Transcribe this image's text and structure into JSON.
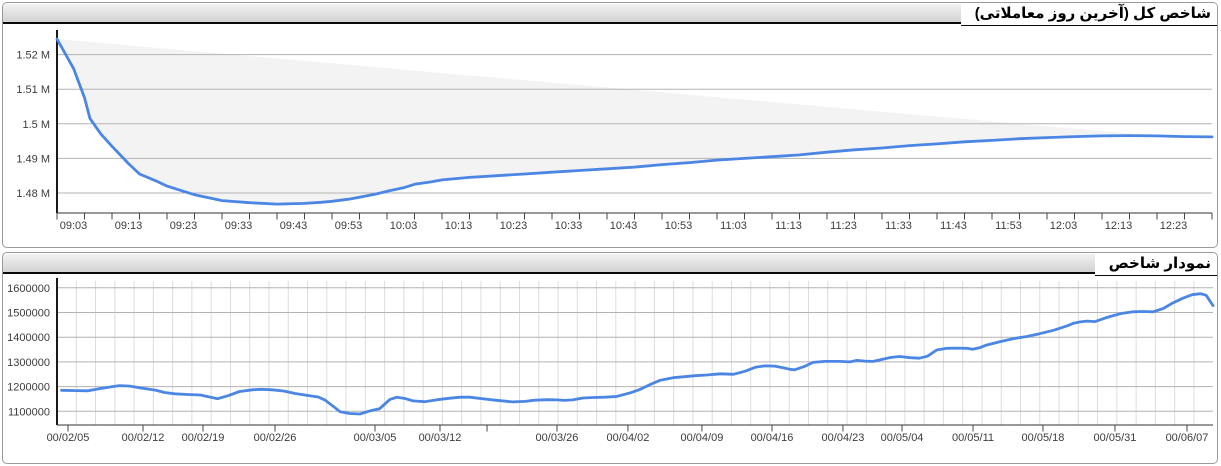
{
  "panels": [
    {
      "title": "شاخص کل (آخرین روز معاملاتی)"
    },
    {
      "title": "نمودار شاخص"
    }
  ],
  "colors": {
    "line": "#4b86e5",
    "envelope_fill": "#f3f3f3",
    "grid_h": "#b3b3b3",
    "grid_v": "#dcdcdc",
    "axis": "#1a1a1a",
    "tick": "#444444",
    "label": "#3c3c3c"
  },
  "chart_data": [
    {
      "type": "line",
      "title": "شاخص کل (آخرین روز معاملاتی)",
      "x_axis": {
        "start_time": "09:00",
        "end_time": "12:30",
        "minor_tick_minutes": 5
      },
      "x_labels": [
        {
          "m": 3,
          "label": "09:03"
        },
        {
          "m": 13,
          "label": "09:13"
        },
        {
          "m": 23,
          "label": "09:23"
        },
        {
          "m": 33,
          "label": "09:33"
        },
        {
          "m": 43,
          "label": "09:43"
        },
        {
          "m": 53,
          "label": "09:53"
        },
        {
          "m": 63,
          "label": "10:03"
        },
        {
          "m": 73,
          "label": "10:13"
        },
        {
          "m": 83,
          "label": "10:23"
        },
        {
          "m": 93,
          "label": "10:33"
        },
        {
          "m": 103,
          "label": "10:43"
        },
        {
          "m": 113,
          "label": "10:53"
        },
        {
          "m": 123,
          "label": "11:03"
        },
        {
          "m": 133,
          "label": "11:13"
        },
        {
          "m": 143,
          "label": "11:23"
        },
        {
          "m": 153,
          "label": "11:33"
        },
        {
          "m": 163,
          "label": "11:43"
        },
        {
          "m": 173,
          "label": "11:53"
        },
        {
          "m": 183,
          "label": "12:03"
        },
        {
          "m": 193,
          "label": "12:13"
        },
        {
          "m": 203,
          "label": "12:23"
        }
      ],
      "y_ticks": [
        {
          "value": 1520000,
          "label": "1.52 M"
        },
        {
          "value": 1510000,
          "label": "1.51 M"
        },
        {
          "value": 1500000,
          "label": "1.5 M"
        },
        {
          "value": 1490000,
          "label": "1.49 M"
        },
        {
          "value": 1480000,
          "label": "1.48 M"
        }
      ],
      "envelope": {
        "from": {
          "m": 0,
          "v": 1524500
        },
        "to": {
          "m": 200,
          "v": 1496500
        }
      },
      "series": [
        {
          "name": "total-index-intraday",
          "points": [
            [
              0,
              1524500
            ],
            [
              3,
              1516000
            ],
            [
              5,
              1507500
            ],
            [
              6,
              1501500
            ],
            [
              8,
              1497000
            ],
            [
              10,
              1493500
            ],
            [
              13,
              1488500
            ],
            [
              15,
              1485500
            ],
            [
              18,
              1483500
            ],
            [
              20,
              1482000
            ],
            [
              23,
              1480500
            ],
            [
              25,
              1479500
            ],
            [
              28,
              1478500
            ],
            [
              30,
              1477800
            ],
            [
              35,
              1477200
            ],
            [
              40,
              1476800
            ],
            [
              45,
              1477000
            ],
            [
              48,
              1477300
            ],
            [
              50,
              1477600
            ],
            [
              53,
              1478200
            ],
            [
              55,
              1478800
            ],
            [
              58,
              1479700
            ],
            [
              60,
              1480500
            ],
            [
              63,
              1481500
            ],
            [
              65,
              1482500
            ],
            [
              68,
              1483200
            ],
            [
              70,
              1483800
            ],
            [
              75,
              1484500
            ],
            [
              80,
              1485000
            ],
            [
              85,
              1485500
            ],
            [
              90,
              1486000
            ],
            [
              95,
              1486500
            ],
            [
              100,
              1487000
            ],
            [
              105,
              1487500
            ],
            [
              110,
              1488200
            ],
            [
              115,
              1488800
            ],
            [
              120,
              1489500
            ],
            [
              125,
              1490000
            ],
            [
              130,
              1490500
            ],
            [
              135,
              1491000
            ],
            [
              140,
              1491800
            ],
            [
              145,
              1492500
            ],
            [
              150,
              1493000
            ],
            [
              155,
              1493700
            ],
            [
              160,
              1494200
            ],
            [
              165,
              1494800
            ],
            [
              170,
              1495200
            ],
            [
              175,
              1495700
            ],
            [
              180,
              1496000
            ],
            [
              185,
              1496300
            ],
            [
              190,
              1496500
            ],
            [
              195,
              1496600
            ],
            [
              200,
              1496500
            ],
            [
              205,
              1496300
            ],
            [
              210,
              1496200
            ]
          ]
        }
      ]
    },
    {
      "type": "line",
      "title": "نمودار شاخص",
      "y_ticks": [
        {
          "value": 1600000,
          "label": "1600000"
        },
        {
          "value": 1500000,
          "label": "1500000"
        },
        {
          "value": 1400000,
          "label": "1400000"
        },
        {
          "value": 1300000,
          "label": "1300000"
        },
        {
          "value": 1200000,
          "label": "1200000"
        },
        {
          "value": 1100000,
          "label": "1100000"
        }
      ],
      "x_ticks": [
        {
          "pos": 0.0095,
          "label": "00/02/05"
        },
        {
          "pos": 0.0744,
          "label": "00/02/12"
        },
        {
          "pos": 0.1263,
          "label": "00/02/19"
        },
        {
          "pos": 0.1886,
          "label": "00/02/26"
        },
        {
          "pos": 0.2751,
          "label": "00/03/05"
        },
        {
          "pos": 0.3313,
          "label": "00/03/12"
        },
        {
          "pos": 0.372,
          "label": ""
        },
        {
          "pos": 0.4325,
          "label": "00/03/26"
        },
        {
          "pos": 0.4939,
          "label": "00/04/02"
        },
        {
          "pos": 0.5579,
          "label": "00/04/09"
        },
        {
          "pos": 0.6185,
          "label": "00/04/16"
        },
        {
          "pos": 0.6799,
          "label": "00/04/23"
        },
        {
          "pos": 0.731,
          "label": "00/05/04"
        },
        {
          "pos": 0.7924,
          "label": "00/05/11"
        },
        {
          "pos": 0.8529,
          "label": "00/05/18"
        },
        {
          "pos": 0.9152,
          "label": "00/05/31"
        },
        {
          "pos": 0.9775,
          "label": "00/06/07"
        }
      ],
      "series": [
        {
          "name": "index-history",
          "points": [
            [
              0.004,
              1185000
            ],
            [
              0.016,
              1184000
            ],
            [
              0.027,
              1183000
            ],
            [
              0.037,
              1192000
            ],
            [
              0.048,
              1200000
            ],
            [
              0.054,
              1204000
            ],
            [
              0.063,
              1202000
            ],
            [
              0.074,
              1193000
            ],
            [
              0.085,
              1186000
            ],
            [
              0.093,
              1176000
            ],
            [
              0.102,
              1171000
            ],
            [
              0.113,
              1168000
            ],
            [
              0.124,
              1166000
            ],
            [
              0.132,
              1158000
            ],
            [
              0.139,
              1151000
            ],
            [
              0.148,
              1163000
            ],
            [
              0.158,
              1180000
            ],
            [
              0.169,
              1187000
            ],
            [
              0.177,
              1189000
            ],
            [
              0.186,
              1187000
            ],
            [
              0.196,
              1182000
            ],
            [
              0.206,
              1172000
            ],
            [
              0.217,
              1164000
            ],
            [
              0.226,
              1158000
            ],
            [
              0.232,
              1145000
            ],
            [
              0.239,
              1120000
            ],
            [
              0.245,
              1098000
            ],
            [
              0.253,
              1091000
            ],
            [
              0.262,
              1089000
            ],
            [
              0.271,
              1102000
            ],
            [
              0.279,
              1110000
            ],
            [
              0.288,
              1148000
            ],
            [
              0.294,
              1157000
            ],
            [
              0.301,
              1152000
            ],
            [
              0.308,
              1142000
            ],
            [
              0.318,
              1139000
            ],
            [
              0.329,
              1147000
            ],
            [
              0.34,
              1153000
            ],
            [
              0.349,
              1157000
            ],
            [
              0.357,
              1157000
            ],
            [
              0.369,
              1150000
            ],
            [
              0.379,
              1145000
            ],
            [
              0.388,
              1141000
            ],
            [
              0.394,
              1138000
            ],
            [
              0.405,
              1140000
            ],
            [
              0.413,
              1145000
            ],
            [
              0.424,
              1147000
            ],
            [
              0.433,
              1146000
            ],
            [
              0.439,
              1144000
            ],
            [
              0.446,
              1146000
            ],
            [
              0.455,
              1154000
            ],
            [
              0.464,
              1156000
            ],
            [
              0.474,
              1157000
            ],
            [
              0.484,
              1160000
            ],
            [
              0.496,
              1175000
            ],
            [
              0.504,
              1188000
            ],
            [
              0.513,
              1208000
            ],
            [
              0.522,
              1226000
            ],
            [
              0.533,
              1236000
            ],
            [
              0.543,
              1240000
            ],
            [
              0.552,
              1244000
            ],
            [
              0.562,
              1247000
            ],
            [
              0.574,
              1252000
            ],
            [
              0.585,
              1250000
            ],
            [
              0.595,
              1262000
            ],
            [
              0.604,
              1278000
            ],
            [
              0.612,
              1284000
            ],
            [
              0.621,
              1283000
            ],
            [
              0.628,
              1276000
            ],
            [
              0.634,
              1270000
            ],
            [
              0.638,
              1268000
            ],
            [
              0.647,
              1282000
            ],
            [
              0.654,
              1298000
            ],
            [
              0.664,
              1302000
            ],
            [
              0.677,
              1302000
            ],
            [
              0.686,
              1300000
            ],
            [
              0.692,
              1306000
            ],
            [
              0.699,
              1303000
            ],
            [
              0.706,
              1302000
            ],
            [
              0.712,
              1308000
            ],
            [
              0.721,
              1318000
            ],
            [
              0.729,
              1322000
            ],
            [
              0.738,
              1317000
            ],
            [
              0.746,
              1315000
            ],
            [
              0.753,
              1323000
            ],
            [
              0.761,
              1348000
            ],
            [
              0.77,
              1355000
            ],
            [
              0.778,
              1356000
            ],
            [
              0.787,
              1355000
            ],
            [
              0.792,
              1351000
            ],
            [
              0.798,
              1357000
            ],
            [
              0.804,
              1368000
            ],
            [
              0.816,
              1382000
            ],
            [
              0.827,
              1394000
            ],
            [
              0.839,
              1403000
            ],
            [
              0.85,
              1414000
            ],
            [
              0.862,
              1428000
            ],
            [
              0.874,
              1446000
            ],
            [
              0.879,
              1456000
            ],
            [
              0.885,
              1462000
            ],
            [
              0.891,
              1465000
            ],
            [
              0.898,
              1463000
            ],
            [
              0.907,
              1478000
            ],
            [
              0.914,
              1488000
            ],
            [
              0.922,
              1497000
            ],
            [
              0.931,
              1503000
            ],
            [
              0.939,
              1504000
            ],
            [
              0.948,
              1503000
            ],
            [
              0.957,
              1516000
            ],
            [
              0.965,
              1538000
            ],
            [
              0.974,
              1558000
            ],
            [
              0.982,
              1572000
            ],
            [
              0.989,
              1576000
            ],
            [
              0.994,
              1570000
            ],
            [
              1.0,
              1528000
            ]
          ]
        }
      ]
    }
  ]
}
